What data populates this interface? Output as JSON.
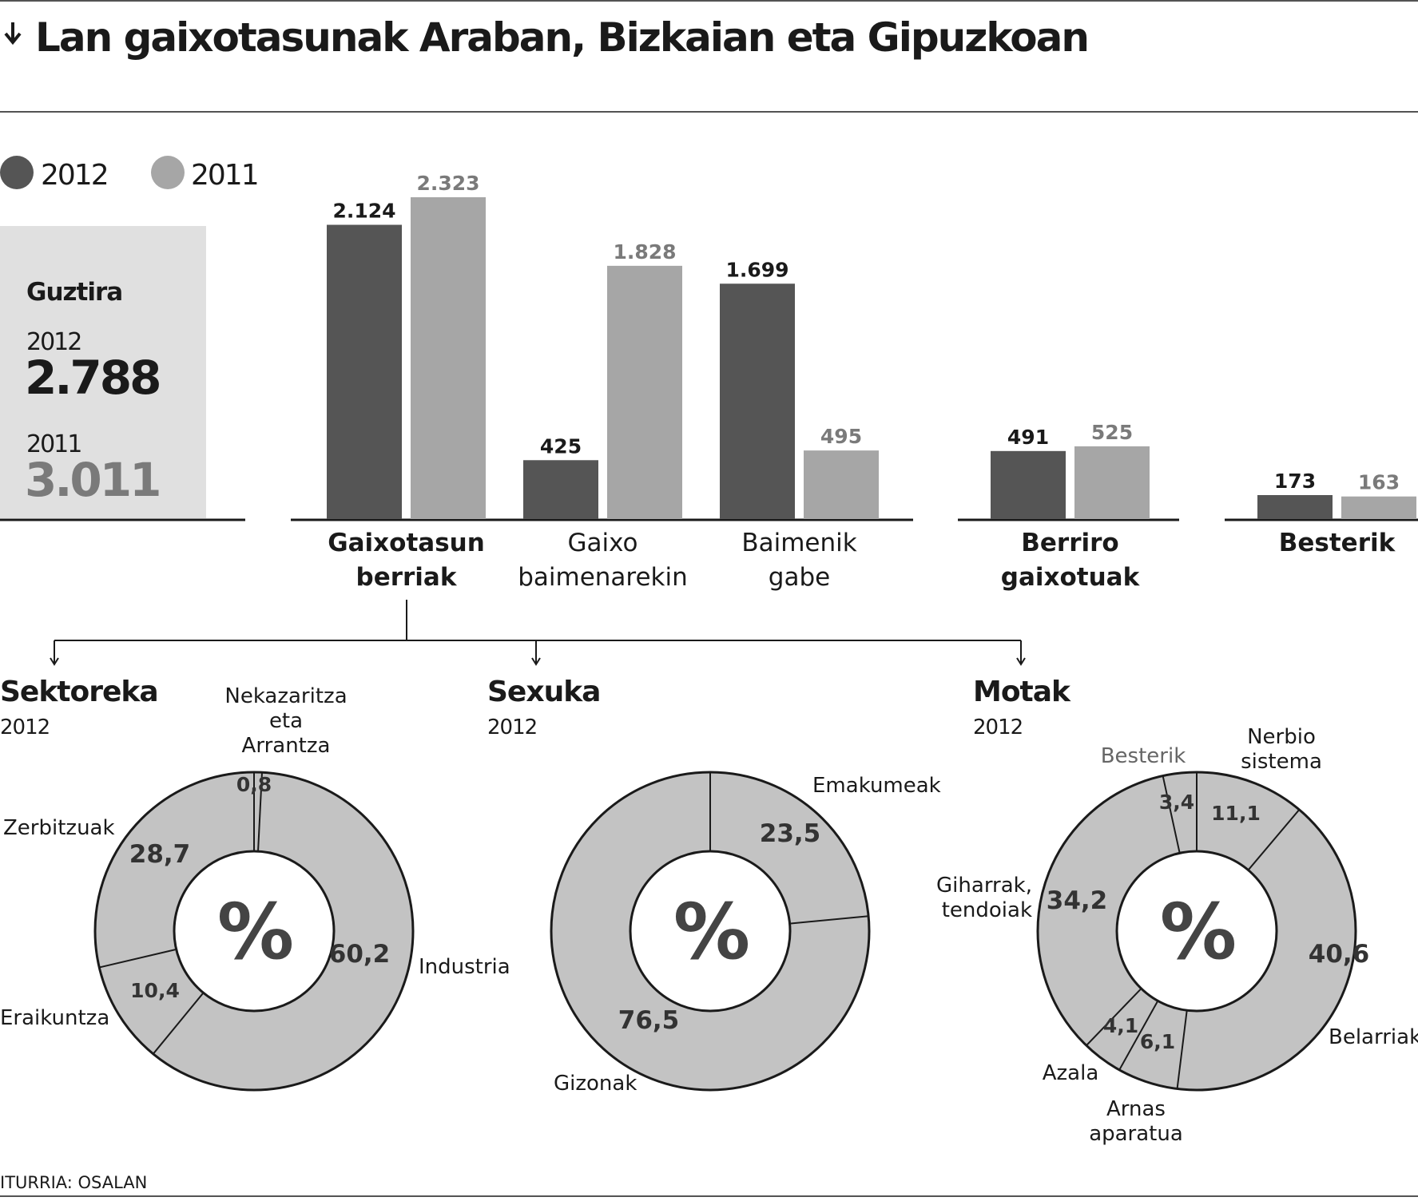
{
  "title": "Lan gaixotasunak Araban, Bizkaian eta Gipuzkoan",
  "source": "ITURRIA: OSALAN",
  "colors": {
    "y2012": "#555555",
    "y2011": "#a6a6a6",
    "donut": "#c3c3c3",
    "panel": "#e0e0e0",
    "ink": "#1a1a1a",
    "inkMuted": "#7a7a7a"
  },
  "legend": {
    "items": [
      {
        "label": "2012"
      },
      {
        "label": "2011"
      }
    ]
  },
  "total": {
    "heading": "Guztira",
    "year2012": "2012",
    "value2012": "2.788",
    "year2011": "2011",
    "value2011": "3.011"
  },
  "chart_data": [
    {
      "type": "bar",
      "categories": [
        "Gaixotasun berriak",
        "Gaixo baimenarekin",
        "Baimenik gabe",
        "Berriro gaixotuak",
        "Besterik"
      ],
      "category_labels": [
        [
          "Gaixotasun",
          "berriak"
        ],
        [
          "Gaixo",
          "baimenarekin"
        ],
        [
          "Baimenik",
          "gabe"
        ],
        [
          "Berriro",
          "gaixotuak"
        ],
        [
          "Besterik"
        ]
      ],
      "series": [
        {
          "name": "2012",
          "values": [
            2124,
            425,
            1699,
            491,
            173
          ],
          "labels": [
            "2.124",
            "425",
            "1.699",
            "491",
            "173"
          ]
        },
        {
          "name": "2011",
          "values": [
            2323,
            1828,
            495,
            525,
            163
          ],
          "labels": [
            "2.323",
            "1.828",
            "495",
            "525",
            "163"
          ]
        }
      ],
      "legend": "top-left",
      "grid": false
    },
    {
      "type": "pie",
      "title": "Sektoreka",
      "subtitle": "2012",
      "center": "%",
      "slices": [
        {
          "label": "Nekazaritza eta Arrantza",
          "value": 0.8,
          "value_label": "0,8"
        },
        {
          "label": "Industria",
          "value": 60.2,
          "value_label": "60,2"
        },
        {
          "label": "Eraikuntza",
          "value": 10.4,
          "value_label": "10,4"
        },
        {
          "label": "Zerbitzuak",
          "value": 28.7,
          "value_label": "28,7"
        }
      ]
    },
    {
      "type": "pie",
      "title": "Sexuka",
      "subtitle": "2012",
      "center": "%",
      "slices": [
        {
          "label": "Emakumeak",
          "value": 23.5,
          "value_label": "23,5"
        },
        {
          "label": "Gizonak",
          "value": 76.5,
          "value_label": "76,5"
        }
      ]
    },
    {
      "type": "pie",
      "title": "Motak",
      "subtitle": "2012",
      "center": "%",
      "slices": [
        {
          "label": "Nerbio sistema",
          "value": 11.1,
          "value_label": "11,1"
        },
        {
          "label": "Belarriak",
          "value": 40.6,
          "value_label": "40,6"
        },
        {
          "label": "Arnas aparatua",
          "value": 6.1,
          "value_label": "6,1"
        },
        {
          "label": "Azala",
          "value": 4.1,
          "value_label": "4,1"
        },
        {
          "label": "Giharrak, tendoiak",
          "value": 34.2,
          "value_label": "34,2"
        },
        {
          "label": "Besterik",
          "value": 3.4,
          "value_label": "3,4"
        }
      ]
    }
  ]
}
